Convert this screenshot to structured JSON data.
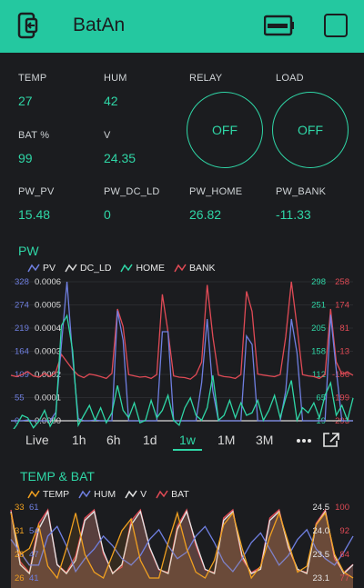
{
  "app": {
    "title": "BatAn"
  },
  "values": {
    "temp": {
      "label": "TEMP",
      "value": "27"
    },
    "hum": {
      "label": "HUM",
      "value": "42"
    },
    "bat": {
      "label": "BAT %",
      "value": "99"
    },
    "v": {
      "label": "V",
      "value": "24.35"
    },
    "pw_pv": {
      "label": "PW_PV",
      "value": "15.48"
    },
    "pw_dc_ld": {
      "label": "PW_DC_LD",
      "value": "0"
    },
    "pw_home": {
      "label": "PW_HOME",
      "value": "26.82"
    },
    "pw_bank": {
      "label": "PW_BANK",
      "value": "-11.33"
    }
  },
  "relay": {
    "label": "RELAY",
    "button": "OFF"
  },
  "load": {
    "label": "LOAD",
    "button": "OFF"
  },
  "ranges": [
    "Live",
    "1h",
    "6h",
    "1d",
    "1w",
    "1M",
    "3M"
  ],
  "active_range": "1w",
  "colors": {
    "accent": "#2fd6a6",
    "pv": "#6f7fe0",
    "dc_ld": "#d9d9d9",
    "home": "#2fd6a6",
    "bank": "#e04a55",
    "temp": "#f0a020",
    "hum": "#6f7fe0",
    "v": "#e6e6e6",
    "batp": "#e04a55"
  },
  "chart_data": [
    {
      "type": "line",
      "title": "PW",
      "series": [
        {
          "name": "PV",
          "values": [
            0,
            0,
            0,
            2,
            0,
            0,
            0,
            0,
            20,
            180,
            328,
            150,
            5,
            0,
            0,
            2,
            0,
            0,
            0,
            260,
            190,
            0,
            0,
            0,
            0,
            0,
            0,
            210,
            210,
            0,
            0,
            0,
            0,
            0,
            90,
            240,
            70,
            0,
            0,
            0,
            0,
            0,
            200,
            180,
            0,
            0,
            0,
            0,
            0,
            70,
            240,
            160,
            0,
            0,
            0,
            0,
            0,
            250,
            120,
            0,
            0,
            0
          ]
        },
        {
          "name": "DC_LD",
          "values": [
            0,
            0,
            0,
            0,
            0,
            0,
            0,
            0,
            0,
            0,
            0,
            0,
            0,
            0,
            0,
            0,
            0,
            0,
            0,
            0,
            0,
            0,
            0,
            0,
            0,
            0,
            0,
            0,
            0,
            0,
            0,
            0,
            0,
            0,
            0,
            0,
            0,
            0,
            0,
            0,
            0,
            0,
            0,
            0,
            0,
            0,
            0,
            0,
            0,
            0,
            0,
            0,
            0,
            0,
            0,
            0,
            0,
            0,
            0,
            0,
            0,
            0
          ]
        },
        {
          "name": "HOME",
          "values": [
            -5,
            10,
            30,
            25,
            5,
            18,
            40,
            8,
            28,
            210,
            230,
            160,
            10,
            30,
            50,
            20,
            45,
            15,
            35,
            90,
            40,
            25,
            55,
            15,
            20,
            60,
            25,
            40,
            70,
            20,
            10,
            45,
            65,
            30,
            20,
            45,
            110,
            20,
            30,
            60,
            25,
            55,
            30,
            35,
            60,
            20,
            40,
            70,
            25,
            65,
            100,
            20,
            45,
            35,
            55,
            25,
            70,
            95,
            30,
            50,
            20,
            65
          ]
        },
        {
          "name": "BANK",
          "values": [
            -113,
            -118,
            -110,
            -98,
            -115,
            -120,
            -105,
            -118,
            -100,
            -30,
            -60,
            -90,
            -113,
            -122,
            -108,
            -112,
            -118,
            -125,
            -105,
            150,
            80,
            -110,
            -115,
            -120,
            -118,
            -125,
            -110,
            208,
            60,
            -115,
            -120,
            -122,
            -128,
            -110,
            -60,
            245,
            40,
            -112,
            -118,
            -120,
            -125,
            -110,
            220,
            140,
            -108,
            -112,
            -115,
            -118,
            -110,
            40,
            258,
            80,
            -110,
            -115,
            -118,
            -125,
            -110,
            150,
            -60,
            -108,
            -100,
            -113
          ]
        }
      ],
      "left_axis_ticks": [
        "328",
        "274",
        "219",
        "164",
        "109",
        "55",
        "0"
      ],
      "left_axis_ticks_2": [
        "0.0006",
        "0.0005",
        "0.0004",
        "0.0003",
        "0.0002",
        "0.0001",
        "0.0000"
      ],
      "right_axis_ticks": [
        "298",
        "251",
        "205",
        "158",
        "112",
        "65",
        "19"
      ],
      "right_axis_ticks_2": [
        "258",
        "174",
        "81",
        "-13",
        "-106",
        "-199",
        "-293"
      ]
    },
    {
      "type": "area",
      "title": "TEMP & BAT",
      "series": [
        {
          "name": "TEMP",
          "values": [
            33,
            26,
            27,
            31,
            24,
            22,
            27,
            33,
            26,
            23,
            22,
            26,
            30,
            32,
            25,
            22,
            22,
            28,
            33,
            27,
            23,
            22,
            25,
            31,
            33,
            27,
            22,
            24,
            29,
            33,
            28,
            23,
            24,
            31,
            33,
            26,
            23,
            22
          ]
        },
        {
          "name": "HUM",
          "values": [
            52,
            48,
            44,
            44,
            53,
            56,
            50,
            42,
            46,
            49,
            53,
            50,
            46,
            44,
            47,
            52,
            55,
            50,
            46,
            48,
            53,
            56,
            51,
            45,
            42,
            46,
            51,
            54,
            49,
            44,
            47,
            52,
            55,
            49,
            46,
            44,
            48,
            53
          ]
        },
        {
          "name": "V",
          "values": [
            24.5,
            23.3,
            23.1,
            24.1,
            24.5,
            23.3,
            23.1,
            23.4,
            24.3,
            24.5,
            23.6,
            23.1,
            23.3,
            24.2,
            24.5,
            23.7,
            23.2,
            23.1,
            24.1,
            24.5,
            23.8,
            23.2,
            23.1,
            24.3,
            24.5,
            23.5,
            23.1,
            23.2,
            24.3,
            24.5,
            23.7,
            23.2,
            23.1,
            24.2,
            24.5,
            23.5,
            23.1,
            23.3
          ]
        },
        {
          "name": "BAT",
          "values": [
            100,
            81,
            77,
            95,
            100,
            80,
            77,
            83,
            97,
            100,
            84,
            77,
            79,
            96,
            100,
            86,
            78,
            77,
            94,
            100,
            87,
            78,
            77,
            97,
            100,
            82,
            77,
            79,
            97,
            100,
            86,
            78,
            77,
            95,
            100,
            82,
            77,
            80
          ]
        }
      ],
      "left_axis_ticks": [
        "33",
        "31",
        "28",
        "26"
      ],
      "left_axis_ticks_2": [
        "61",
        "54",
        "47",
        "41"
      ],
      "right_axis_ticks": [
        "24.5",
        "24.0",
        "23.5",
        "23.1"
      ],
      "right_axis_ticks_2": [
        "100",
        "92",
        "84",
        "77"
      ]
    }
  ]
}
